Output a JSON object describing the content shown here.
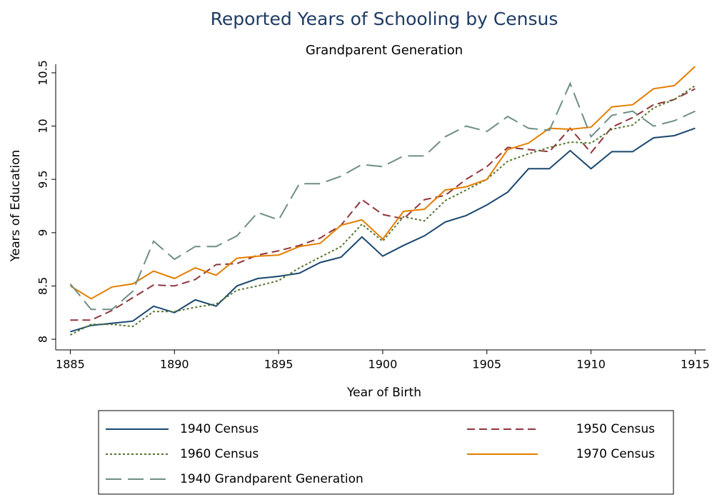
{
  "chart_data": {
    "type": "line",
    "title": "Reported Years of Schooling by Census",
    "subtitle": "Grandparent Generation",
    "x_label": "Year of Birth",
    "y_label": "Years of Education",
    "x": [
      1885,
      1886,
      1887,
      1888,
      1889,
      1890,
      1891,
      1892,
      1893,
      1894,
      1895,
      1896,
      1897,
      1898,
      1899,
      1900,
      1901,
      1902,
      1903,
      1904,
      1905,
      1906,
      1907,
      1908,
      1909,
      1910,
      1911,
      1912,
      1913,
      1914,
      1915
    ],
    "xlim": [
      1884.3,
      1915.5
    ],
    "xticks": [
      1885,
      1890,
      1895,
      1900,
      1905,
      1910,
      1915
    ],
    "ylim": [
      7.9,
      10.58
    ],
    "yticks": [
      8,
      8.5,
      9,
      9.5,
      10,
      10.5
    ],
    "grid": false,
    "series": [
      {
        "name": "1940 Census",
        "color": "#1a476f",
        "dash": "solid",
        "values": [
          8.07,
          8.13,
          8.15,
          8.17,
          8.31,
          8.25,
          8.37,
          8.31,
          8.5,
          8.57,
          8.59,
          8.62,
          8.72,
          8.77,
          8.96,
          8.78,
          8.88,
          8.97,
          9.1,
          9.16,
          9.26,
          9.38,
          9.6,
          9.6,
          9.77,
          9.6,
          9.76,
          9.76,
          9.89,
          9.91,
          9.98
        ]
      },
      {
        "name": "1950 Census",
        "color": "#90353b",
        "dash": "dashed",
        "values": [
          8.18,
          8.18,
          8.27,
          8.39,
          8.51,
          8.5,
          8.56,
          8.7,
          8.71,
          8.79,
          8.83,
          8.88,
          8.95,
          9.07,
          9.31,
          9.17,
          9.13,
          9.31,
          9.35,
          9.5,
          9.62,
          9.8,
          9.78,
          9.76,
          9.98,
          9.75,
          9.99,
          10.08,
          10.2,
          10.25,
          10.35
        ]
      },
      {
        "name": "1960 Census",
        "color": "#55752f",
        "dash": "dotted",
        "values": [
          8.04,
          8.14,
          8.14,
          8.12,
          8.26,
          8.26,
          8.3,
          8.33,
          8.46,
          8.5,
          8.55,
          8.67,
          8.77,
          8.87,
          9.08,
          8.92,
          9.15,
          9.11,
          9.3,
          9.4,
          9.5,
          9.67,
          9.74,
          9.8,
          9.85,
          9.84,
          9.97,
          10.01,
          10.17,
          10.25,
          10.38
        ]
      },
      {
        "name": "1970 Census",
        "color": "#e37e00",
        "dash": "solid",
        "values": [
          8.5,
          8.38,
          8.49,
          8.52,
          8.64,
          8.57,
          8.67,
          8.6,
          8.76,
          8.78,
          8.79,
          8.87,
          8.9,
          9.07,
          9.12,
          8.94,
          9.2,
          9.22,
          9.4,
          9.43,
          9.5,
          9.78,
          9.84,
          9.98,
          9.97,
          9.99,
          10.18,
          10.2,
          10.35,
          10.38,
          10.56
        ]
      },
      {
        "name": "1940 Grandparent Generation",
        "color": "#6e8e84",
        "dash": "longdash",
        "values": [
          8.52,
          8.28,
          8.28,
          8.45,
          8.92,
          8.75,
          8.87,
          8.87,
          8.97,
          9.19,
          9.12,
          9.46,
          9.46,
          9.53,
          9.64,
          9.62,
          9.72,
          9.72,
          9.9,
          10.0,
          9.95,
          10.09,
          9.98,
          9.96,
          10.4,
          9.9,
          10.1,
          10.14,
          10.0,
          10.05,
          10.14
        ]
      }
    ]
  }
}
